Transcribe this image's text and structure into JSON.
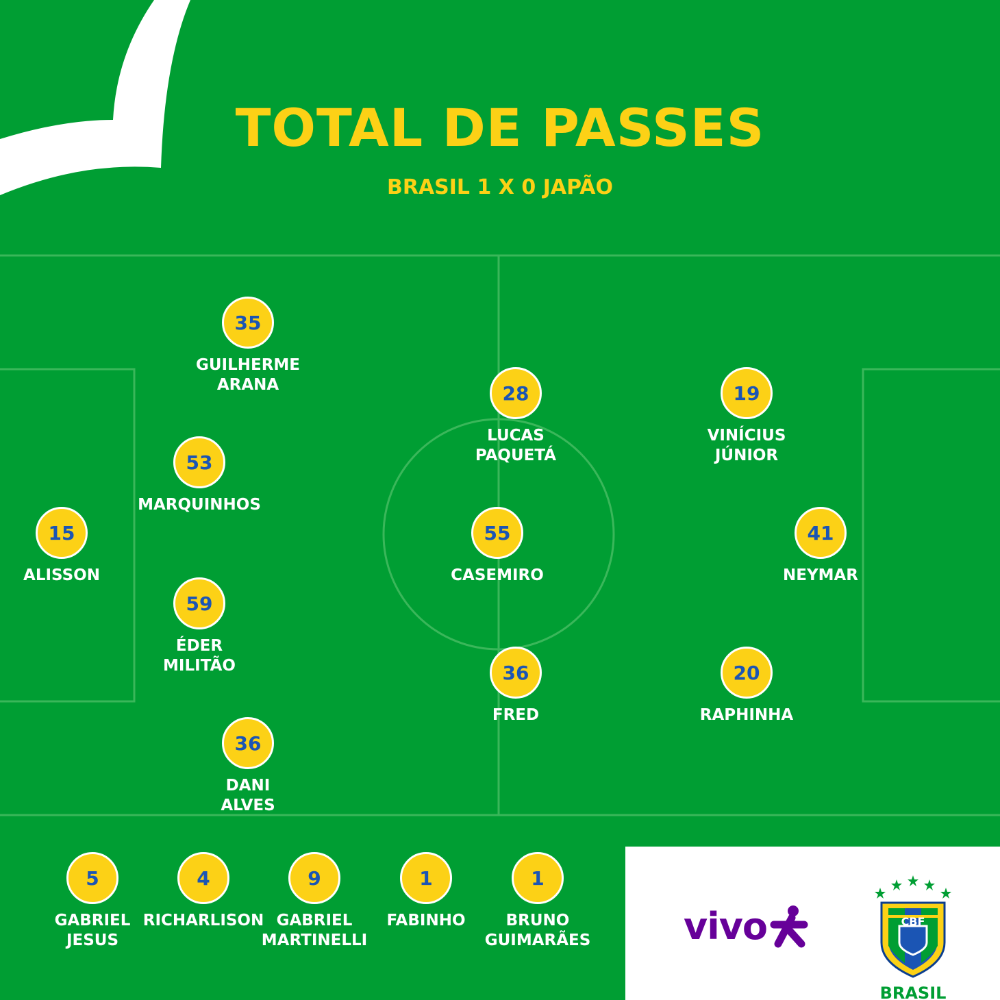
{
  "header": {
    "title": "TOTAL DE PASSES",
    "subtitle": "BRASIL 1 X 0 JAPÃO"
  },
  "colors": {
    "background": "#009e33",
    "accent_yellow": "#fcd116",
    "number_blue": "#1b55b4",
    "vivo_purple": "#660099"
  },
  "starters": [
    {
      "passes": "35",
      "name_line1": "GUILHERME",
      "name_line2": "ARANA"
    },
    {
      "passes": "53",
      "name_line1": "MARQUINHOS",
      "name_line2": ""
    },
    {
      "passes": "15",
      "name_line1": "ALISSON",
      "name_line2": ""
    },
    {
      "passes": "59",
      "name_line1": "ÉDER",
      "name_line2": "MILITÃO"
    },
    {
      "passes": "36",
      "name_line1": "DANI",
      "name_line2": "ALVES"
    },
    {
      "passes": "28",
      "name_line1": "LUCAS",
      "name_line2": "PAQUETÁ"
    },
    {
      "passes": "55",
      "name_line1": "CASEMIRO",
      "name_line2": ""
    },
    {
      "passes": "36",
      "name_line1": "FRED",
      "name_line2": ""
    },
    {
      "passes": "19",
      "name_line1": "VINÍCIUS",
      "name_line2": "JÚNIOR"
    },
    {
      "passes": "41",
      "name_line1": "NEYMAR",
      "name_line2": ""
    },
    {
      "passes": "20",
      "name_line1": "RAPHINHA",
      "name_line2": ""
    }
  ],
  "substitutes": [
    {
      "passes": "5",
      "name_line1": "GABRIEL",
      "name_line2": "JESUS"
    },
    {
      "passes": "4",
      "name_line1": "RICHARLISON",
      "name_line2": ""
    },
    {
      "passes": "9",
      "name_line1": "GABRIEL",
      "name_line2": "MARTINELLI"
    },
    {
      "passes": "1",
      "name_line1": "FABINHO",
      "name_line2": ""
    },
    {
      "passes": "1",
      "name_line1": "BRUNO",
      "name_line2": "GUIMARÃES"
    }
  ],
  "sponsors": {
    "vivo_text": "vivo",
    "cbf_text": "CBF",
    "cbf_label": "BRASIL"
  }
}
